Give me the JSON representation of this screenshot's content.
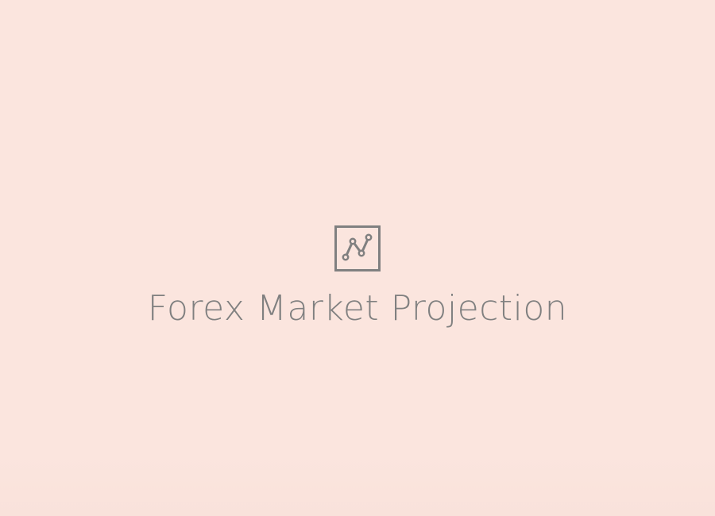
{
  "app": {
    "title": "Forex Market Projection",
    "logo_icon": "line-chart-icon"
  },
  "colors": {
    "background": "#fbe5de",
    "foreground": "#808080"
  }
}
